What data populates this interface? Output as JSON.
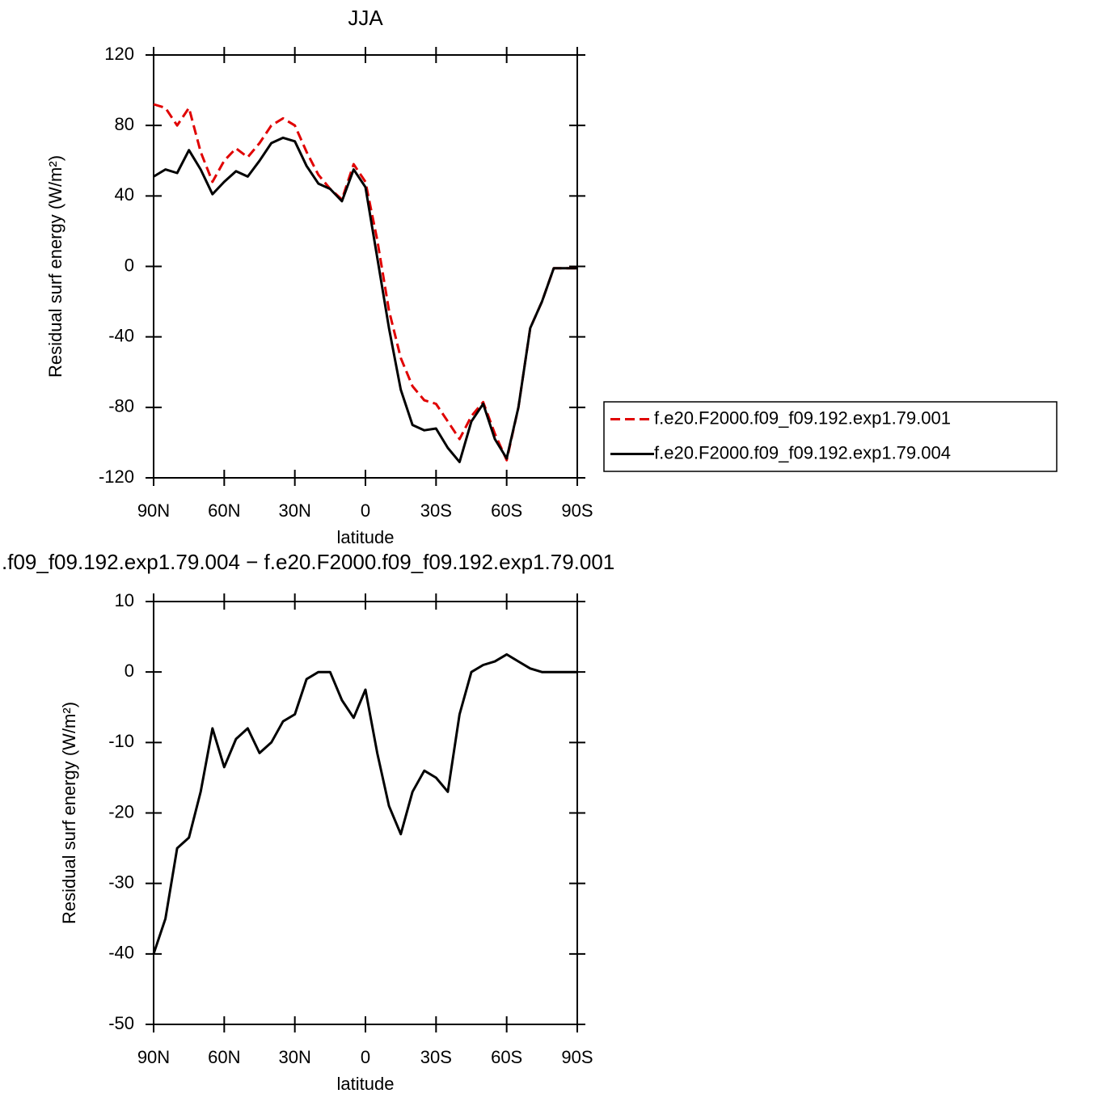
{
  "chart_data": [
    {
      "type": "line",
      "title": "JJA",
      "x_label": "latitude",
      "y_label": "Residual surf energy (W/m²)",
      "x": [
        90,
        85,
        80,
        75,
        70,
        65,
        60,
        55,
        50,
        45,
        40,
        35,
        30,
        25,
        20,
        15,
        10,
        5,
        0,
        -5,
        -10,
        -15,
        -20,
        -25,
        -30,
        -35,
        -40,
        -45,
        -50,
        -55,
        -60,
        -65,
        -70,
        -75,
        -80,
        -85,
        -90
      ],
      "series": [
        {
          "name": "f.e20.F2000.f09_f09.192.exp1.79.001",
          "color": "#e00000",
          "dash": true,
          "values": [
            92,
            90,
            80,
            90,
            65,
            48,
            60,
            67,
            62,
            70,
            80,
            84,
            80,
            65,
            52,
            44,
            38,
            58,
            48,
            15,
            -25,
            -52,
            -68,
            -76,
            -78,
            -88,
            -98,
            -85,
            -77,
            -95,
            -110,
            -80,
            -35,
            -20,
            -1,
            -1,
            -1
          ]
        },
        {
          "name": "f.e20.F2000.f09_f09.192.exp1.79.004",
          "color": "#000000",
          "dash": false,
          "values": [
            51,
            55,
            53,
            66,
            55,
            41,
            48,
            54,
            51,
            60,
            70,
            73,
            71,
            57,
            47,
            44,
            37,
            55,
            45,
            5,
            -35,
            -70,
            -90,
            -93,
            -92,
            -103,
            -111,
            -88,
            -78,
            -98,
            -109,
            -80,
            -35,
            -20,
            -1,
            -1,
            -1
          ]
        }
      ],
      "xlim": [
        90,
        -90
      ],
      "xticks": [
        {
          "value": 90,
          "label": "90N"
        },
        {
          "value": 60,
          "label": "60N"
        },
        {
          "value": 30,
          "label": "30N"
        },
        0,
        {
          "value": -30,
          "label": "30S"
        },
        {
          "value": -60,
          "label": "60S"
        },
        {
          "value": -90,
          "label": "90S"
        }
      ],
      "ylim": [
        -120,
        120
      ],
      "yticks": [
        -120,
        -80,
        -40,
        0,
        40,
        80,
        120
      ],
      "legend": "right"
    },
    {
      "type": "line",
      "title": ".f09_f09.192.exp1.79.004 − f.e20.F2000.f09_f09.192.exp1.79.001",
      "x_label": "latitude",
      "y_label": "Residual surf energy (W/m²)",
      "x": [
        90,
        85,
        80,
        75,
        70,
        65,
        60,
        55,
        50,
        45,
        40,
        35,
        30,
        25,
        20,
        15,
        10,
        5,
        0,
        -5,
        -10,
        -15,
        -20,
        -25,
        -30,
        -35,
        -40,
        -45,
        -50,
        -55,
        -60,
        -65,
        -70,
        -75,
        -80,
        -85,
        -90
      ],
      "series": [
        {
          "color": "#000000",
          "dash": false,
          "values": [
            -40,
            -35,
            -25,
            -23.5,
            -17,
            -8,
            -13.5,
            -9.5,
            -8,
            -11.5,
            -10,
            -7,
            -6,
            -1,
            0,
            0,
            -4,
            -6.5,
            -2.5,
            -11.5,
            -19,
            -23,
            -17,
            -14,
            -15,
            -17,
            -6,
            0,
            1,
            1.5,
            2.5,
            1.5,
            0.5,
            0,
            0,
            0,
            0
          ]
        }
      ],
      "xlim": [
        90,
        -90
      ],
      "xticks": [
        {
          "value": 90,
          "label": "90N"
        },
        {
          "value": 60,
          "label": "60N"
        },
        {
          "value": 30,
          "label": "30N"
        },
        0,
        {
          "value": -30,
          "label": "30S"
        },
        {
          "value": -60,
          "label": "60S"
        },
        {
          "value": -90,
          "label": "90S"
        }
      ],
      "ylim": [
        -50,
        10
      ],
      "yticks": [
        -50,
        -40,
        -30,
        -20,
        -10,
        0,
        10
      ]
    }
  ]
}
